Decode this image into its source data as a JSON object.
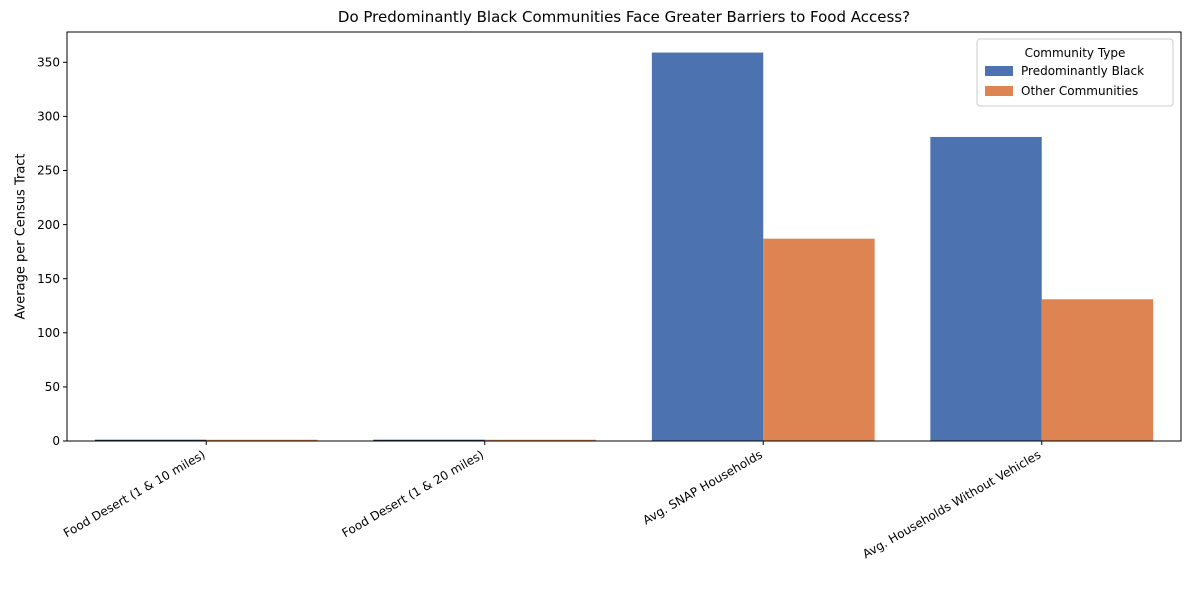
{
  "chart_data": {
    "type": "bar",
    "title": "Do Predominantly Black Communities Face Greater Barriers to Food Access?",
    "xlabel": "",
    "ylabel": "Average per Census Tract",
    "categories": [
      "Food Desert (1 & 10 miles)",
      "Food Desert (1 & 20 miles)",
      "Avg. SNAP Households",
      "Avg. Households Without Vehicles"
    ],
    "series": [
      {
        "name": "Predominantly Black",
        "values": [
          0.35,
          0.3,
          359,
          281
        ],
        "color": "#4c72b0"
      },
      {
        "name": "Other Communities",
        "values": [
          0.1,
          0.05,
          187,
          131
        ],
        "color": "#dd8452"
      }
    ],
    "ylim": [
      0,
      378
    ],
    "yticks": [
      0,
      50,
      100,
      150,
      200,
      250,
      300,
      350
    ],
    "grid": false,
    "legend": {
      "title": "Community Type",
      "placement": "top-right"
    }
  }
}
